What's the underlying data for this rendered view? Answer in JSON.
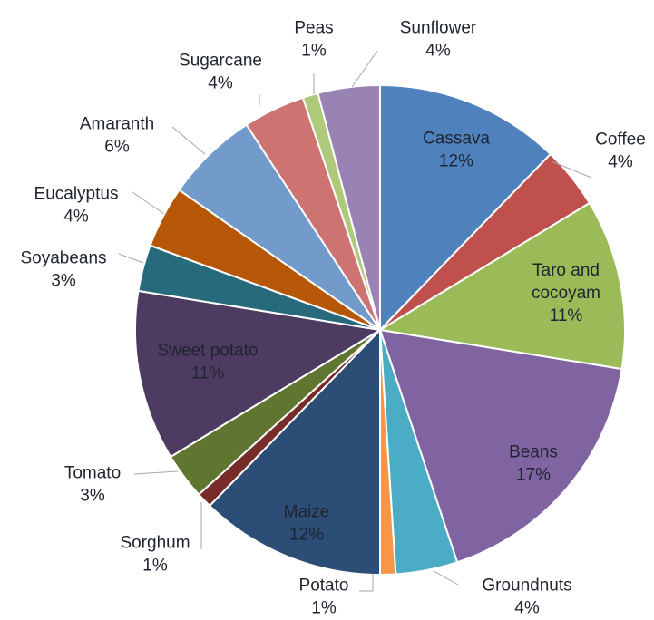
{
  "chart_data": {
    "type": "pie",
    "title": "",
    "slices": [
      {
        "label": "Cassava",
        "value": 12,
        "percent_label": "12%",
        "color": "#4f81bd"
      },
      {
        "label": "Coffee",
        "value": 4,
        "percent_label": "4%",
        "color": "#c0504d"
      },
      {
        "label": "Taro and cocoyam",
        "value": 11,
        "percent_label": "11%",
        "color": "#9bbb59"
      },
      {
        "label": "Beans",
        "value": 17,
        "percent_label": "17%",
        "color": "#8064a2"
      },
      {
        "label": "Groundnuts",
        "value": 4,
        "percent_label": "4%",
        "color": "#4bacc6"
      },
      {
        "label": "Potato",
        "value": 1,
        "percent_label": "1%",
        "color": "#f79646"
      },
      {
        "label": "Maize",
        "value": 12,
        "percent_label": "12%",
        "color": "#2c4d75"
      },
      {
        "label": "Sorghum",
        "value": 1,
        "percent_label": "1%",
        "color": "#772c2a"
      },
      {
        "label": "Tomato",
        "value": 3,
        "percent_label": "3%",
        "color": "#5f7530"
      },
      {
        "label": "Sweet potato",
        "value": 11,
        "percent_label": "11%",
        "color": "#4d3b62"
      },
      {
        "label": "Soyabeans",
        "value": 3,
        "percent_label": "3%",
        "color": "#276a7c"
      },
      {
        "label": "Eucalyptus",
        "value": 4,
        "percent_label": "4%",
        "color": "#b65708"
      },
      {
        "label": "Amaranth",
        "value": 6,
        "percent_label": "6%",
        "color": "#729aca"
      },
      {
        "label": "Sugarcane",
        "value": 4,
        "percent_label": "4%",
        "color": "#cd7371"
      },
      {
        "label": "Peas",
        "value": 1,
        "percent_label": "1%",
        "color": "#afc97a"
      },
      {
        "label": "Sunflower",
        "value": 4,
        "percent_label": "4%",
        "color": "#9983b5"
      }
    ],
    "legend": "none"
  }
}
